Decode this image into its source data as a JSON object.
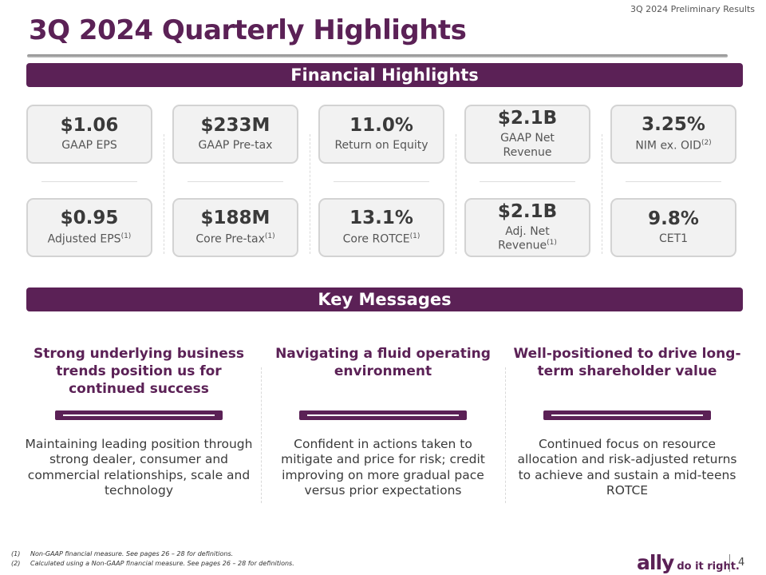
{
  "header": {
    "top_label": "3Q 2024 Preliminary Results",
    "title": "3Q 2024 Quarterly Highlights"
  },
  "financial": {
    "section_title": "Financial Highlights",
    "row1": [
      {
        "value": "$1.06",
        "label": "GAAP EPS",
        "sup": ""
      },
      {
        "value": "$233M",
        "label": "GAAP Pre-tax",
        "sup": ""
      },
      {
        "value": "11.0%",
        "label": "Return on Equity",
        "sup": ""
      },
      {
        "value": "$2.1B",
        "label": "GAAP Net Revenue",
        "sup": ""
      },
      {
        "value": "3.25%",
        "label": "NIM ex. OID",
        "sup": "(2)"
      }
    ],
    "row2": [
      {
        "value": "$0.95",
        "label": "Adjusted EPS",
        "sup": "(1)"
      },
      {
        "value": "$188M",
        "label": "Core Pre-tax",
        "sup": "(1)"
      },
      {
        "value": "13.1%",
        "label": "Core ROTCE",
        "sup": "(1)"
      },
      {
        "value": "$2.1B",
        "label": "Adj. Net Revenue",
        "sup": "(1)"
      },
      {
        "value": "9.8%",
        "label": "CET1",
        "sup": ""
      }
    ]
  },
  "key_messages": {
    "section_title": "Key Messages",
    "columns": [
      {
        "heading": "Strong underlying business trends position us for continued success",
        "body": "Maintaining leading position through strong dealer, consumer and commercial relationships, scale and technology"
      },
      {
        "heading": "Navigating a fluid operating environment",
        "body": "Confident in actions taken to mitigate and price for risk; credit improving on more gradual pace versus prior expectations"
      },
      {
        "heading": "Well-positioned to drive long-term shareholder value",
        "body": "Continued focus on resource allocation and risk-adjusted returns to achieve and sustain a mid-teens ROTCE"
      }
    ]
  },
  "footnotes": [
    {
      "mark": "(1)",
      "text": "Non-GAAP financial measure. See pages 26 – 28 for definitions."
    },
    {
      "mark": "(2)",
      "text": "Calculated using a Non-GAAP financial measure. See pages 26 – 28 for definitions."
    }
  ],
  "footer": {
    "logo_text": "ally",
    "tagline": "do it right.",
    "page_number": "4"
  },
  "colors": {
    "brand_purple": "#5b2156",
    "card_bg": "#f2f2f2"
  }
}
